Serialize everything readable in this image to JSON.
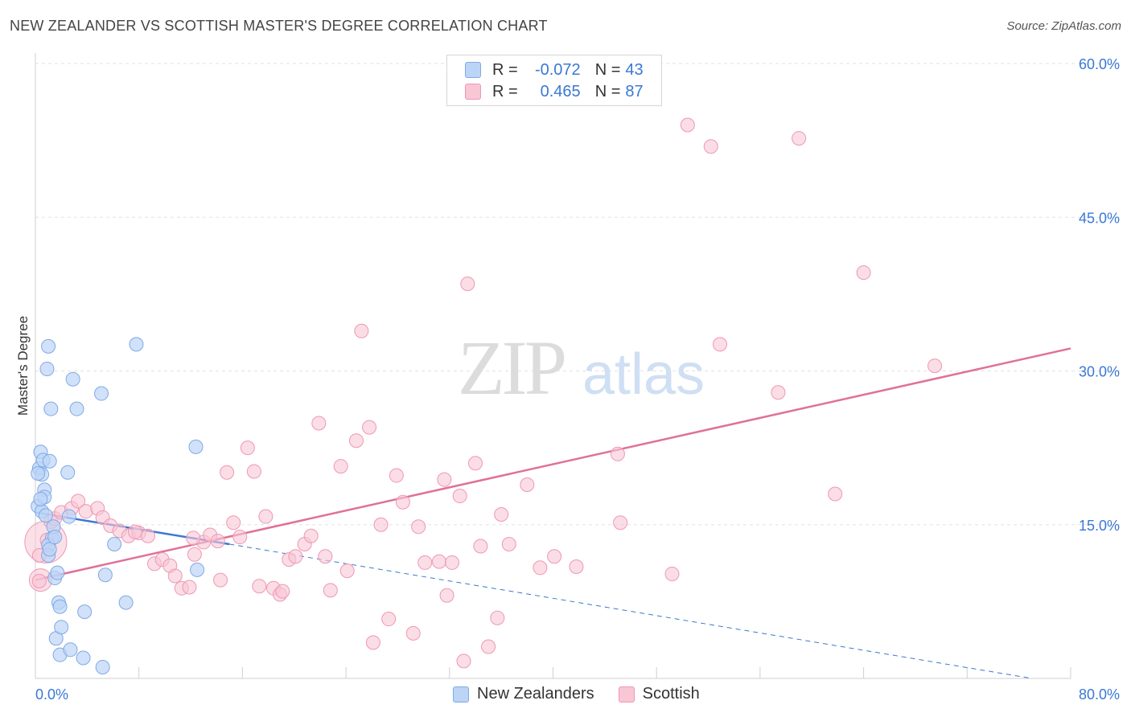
{
  "header": {
    "title": "NEW ZEALANDER VS SCOTTISH MASTER'S DEGREE CORRELATION CHART",
    "source": "Source: ZipAtlas.com"
  },
  "legend": {
    "rows": [
      {
        "r_label": "R =",
        "r_value": "-0.072",
        "n_label": "N =",
        "n_value": "43"
      },
      {
        "r_label": "R =",
        "r_value": "0.465",
        "n_label": "N =",
        "n_value": "87"
      }
    ]
  },
  "bottom_legend": {
    "blue": "New Zealanders",
    "pink": "Scottish"
  },
  "watermark": {
    "zip": "ZIP",
    "atlas": "atlas"
  },
  "colors": {
    "blue": "#7faae6",
    "blue_fill": "#bcd4f6",
    "blue_line": "#3a78d4",
    "pink": "#ee98b4",
    "pink_fill": "#f9c6d6",
    "pink_line": "#e0709a",
    "axis_text": "#3a78d4"
  },
  "chart_data": {
    "type": "scatter",
    "ylabel": "Master's Degree",
    "xlim": [
      0,
      80
    ],
    "ylim": [
      0,
      60
    ],
    "x_tick_labels": [
      "0.0%",
      "80.0%"
    ],
    "y_ticks": [
      15,
      30,
      45,
      60
    ],
    "y_tick_labels": [
      "15.0%",
      "30.0%",
      "45.0%",
      "60.0%"
    ],
    "grid": "horizontal dashed",
    "series": [
      {
        "name": "New Zealanders",
        "points": [
          [
            0.2,
            16.8
          ],
          [
            0.3,
            20.5
          ],
          [
            0.4,
            22.1
          ],
          [
            0.5,
            19.9
          ],
          [
            0.5,
            16.3
          ],
          [
            0.6,
            21.3
          ],
          [
            0.7,
            18.4
          ],
          [
            0.8,
            15.9
          ],
          [
            0.7,
            17.7
          ],
          [
            0.9,
            30.2
          ],
          [
            1.0,
            32.4
          ],
          [
            1.1,
            21.2
          ],
          [
            1.2,
            26.3
          ],
          [
            1.3,
            13.7
          ],
          [
            1.4,
            14.8
          ],
          [
            1.0,
            13.0
          ],
          [
            1.0,
            12.0
          ],
          [
            1.5,
            9.8
          ],
          [
            1.7,
            10.3
          ],
          [
            1.6,
            3.9
          ],
          [
            1.8,
            7.4
          ],
          [
            1.9,
            7.0
          ],
          [
            2.0,
            5.0
          ],
          [
            1.9,
            2.3
          ],
          [
            2.5,
            20.1
          ],
          [
            2.6,
            15.8
          ],
          [
            2.9,
            29.2
          ],
          [
            3.2,
            26.3
          ],
          [
            3.8,
            6.5
          ],
          [
            3.7,
            2.0
          ],
          [
            5.1,
            27.8
          ],
          [
            5.2,
            1.1
          ],
          [
            5.4,
            10.1
          ],
          [
            6.1,
            13.1
          ],
          [
            7.0,
            7.4
          ],
          [
            7.8,
            32.6
          ],
          [
            12.4,
            22.6
          ],
          [
            12.5,
            10.6
          ],
          [
            2.7,
            2.8
          ],
          [
            0.2,
            20.0
          ],
          [
            0.4,
            17.5
          ],
          [
            1.1,
            12.6
          ],
          [
            1.5,
            13.8
          ]
        ]
      },
      {
        "name": "Scottish",
        "points": [
          [
            0.3,
            12.0
          ],
          [
            0.3,
            9.5
          ],
          [
            0.9,
            13.5
          ],
          [
            1.2,
            15.3
          ],
          [
            1.5,
            15.6
          ],
          [
            2.0,
            16.2
          ],
          [
            2.8,
            16.6
          ],
          [
            3.3,
            17.3
          ],
          [
            3.9,
            16.3
          ],
          [
            4.8,
            16.6
          ],
          [
            5.2,
            15.7
          ],
          [
            5.8,
            14.9
          ],
          [
            6.5,
            14.4
          ],
          [
            7.2,
            13.9
          ],
          [
            8.0,
            14.2
          ],
          [
            8.7,
            13.9
          ],
          [
            9.2,
            11.2
          ],
          [
            9.8,
            11.6
          ],
          [
            10.4,
            11.0
          ],
          [
            10.8,
            10.0
          ],
          [
            11.3,
            8.8
          ],
          [
            11.9,
            8.9
          ],
          [
            12.3,
            12.1
          ],
          [
            13.0,
            13.3
          ],
          [
            13.5,
            14.0
          ],
          [
            14.1,
            13.4
          ],
          [
            14.3,
            9.6
          ],
          [
            14.8,
            20.1
          ],
          [
            15.3,
            15.2
          ],
          [
            15.8,
            13.8
          ],
          [
            16.4,
            22.5
          ],
          [
            16.9,
            20.2
          ],
          [
            17.3,
            9.0
          ],
          [
            17.8,
            15.8
          ],
          [
            18.4,
            8.8
          ],
          [
            18.9,
            8.2
          ],
          [
            19.1,
            8.5
          ],
          [
            19.6,
            11.6
          ],
          [
            20.1,
            11.9
          ],
          [
            20.8,
            13.1
          ],
          [
            21.3,
            13.9
          ],
          [
            21.9,
            24.9
          ],
          [
            22.4,
            11.9
          ],
          [
            22.8,
            8.6
          ],
          [
            23.6,
            20.7
          ],
          [
            24.1,
            10.5
          ],
          [
            24.8,
            23.2
          ],
          [
            25.2,
            33.9
          ],
          [
            25.8,
            24.5
          ],
          [
            26.1,
            3.5
          ],
          [
            26.7,
            15.0
          ],
          [
            27.3,
            5.8
          ],
          [
            27.9,
            19.8
          ],
          [
            28.4,
            17.2
          ],
          [
            29.2,
            4.4
          ],
          [
            29.6,
            14.8
          ],
          [
            30.1,
            11.3
          ],
          [
            31.2,
            11.4
          ],
          [
            31.6,
            19.4
          ],
          [
            31.8,
            8.1
          ],
          [
            32.2,
            11.3
          ],
          [
            32.8,
            17.8
          ],
          [
            33.1,
            1.7
          ],
          [
            33.4,
            38.5
          ],
          [
            34.0,
            21.0
          ],
          [
            34.4,
            12.9
          ],
          [
            35.0,
            3.1
          ],
          [
            35.7,
            5.9
          ],
          [
            36.0,
            16.0
          ],
          [
            36.6,
            13.1
          ],
          [
            38.0,
            18.9
          ],
          [
            39.0,
            10.8
          ],
          [
            40.1,
            11.9
          ],
          [
            41.8,
            10.9
          ],
          [
            45.0,
            21.9
          ],
          [
            45.2,
            15.2
          ],
          [
            49.2,
            10.2
          ],
          [
            50.4,
            54.0
          ],
          [
            52.2,
            51.9
          ],
          [
            52.9,
            32.6
          ],
          [
            57.4,
            27.9
          ],
          [
            59.0,
            52.7
          ],
          [
            61.8,
            18.0
          ],
          [
            64.0,
            39.6
          ],
          [
            69.5,
            30.5
          ],
          [
            7.7,
            14.3
          ],
          [
            12.2,
            13.7
          ]
        ]
      }
    ],
    "trend_lines": [
      {
        "series": "New Zealanders",
        "x": [
          0,
          15
        ],
        "y": [
          16.2,
          13.1
        ],
        "extended_to": [
          77,
          0.0
        ],
        "extended_style": "dashed"
      },
      {
        "series": "Scottish",
        "x": [
          0,
          80
        ],
        "y": [
          9.6,
          32.2
        ]
      }
    ]
  }
}
